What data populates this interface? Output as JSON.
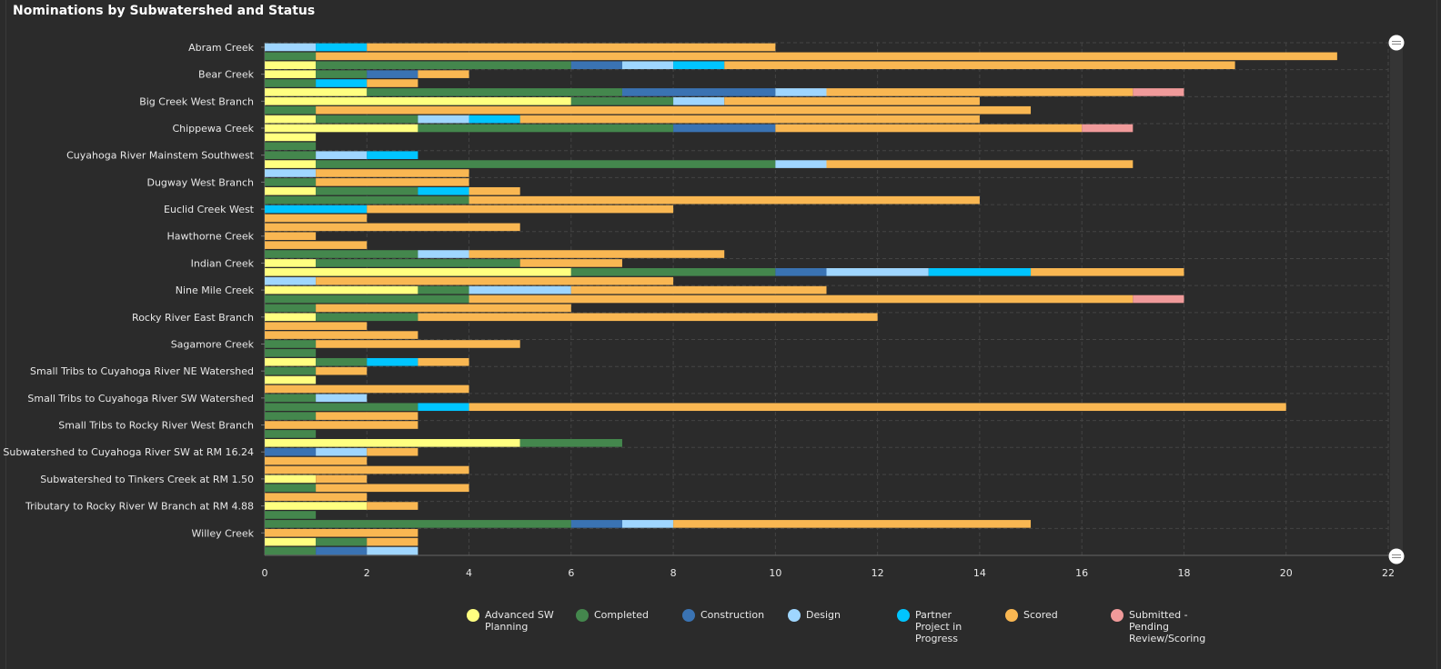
{
  "chart_data": {
    "type": "bar",
    "orientation": "horizontal",
    "stacked": true,
    "title": "Nominations by Subwatershed and Status",
    "xlim": [
      0,
      22
    ],
    "x_ticks": [
      0,
      2,
      4,
      6,
      8,
      10,
      12,
      14,
      16,
      18,
      20,
      22
    ],
    "grid": true,
    "legend_position": "bottom",
    "y_tick_labels": [
      "Abram Creek",
      "Bear Creek",
      "Big Creek West Branch",
      "Chippewa Creek",
      "Cuyahoga River Mainstem Southwest",
      "Dugway West Branch",
      "Euclid Creek West",
      "Hawthorne Creek",
      "Indian Creek",
      "Nine Mile Creek",
      "Rocky River East Branch",
      "Sagamore Creek",
      "Small Tribs to Cuyahoga River NE Watershed",
      "Small Tribs to Cuyahoga River SW Watershed",
      "Small Tribs to Rocky River West Branch",
      "Subwatershed to Cuyahoga River SW at RM 16.24",
      "Subwatershed to Tinkers Creek at RM 1.50",
      "Tributary to Rocky River W Branch at RM 4.88",
      "Willey Creek"
    ],
    "series": [
      {
        "name": "Advanced SW Planning",
        "color": "#ffff80"
      },
      {
        "name": "Completed",
        "color": "#44874d"
      },
      {
        "name": "Construction",
        "color": "#3a73b3"
      },
      {
        "name": "Design",
        "color": "#9fd6ff"
      },
      {
        "name": "Partner Project in Progress",
        "color": "#00c5ff"
      },
      {
        "name": "Scored",
        "color": "#f9b752"
      },
      {
        "name": "Submitted - Pending Review/Scoring",
        "color": "#f09a9a"
      }
    ],
    "rows": [
      [
        0,
        0,
        0,
        1,
        1,
        8,
        0
      ],
      [
        0,
        1,
        0,
        0,
        0,
        20,
        0
      ],
      [
        1,
        5,
        1,
        1,
        1,
        10,
        0
      ],
      [
        1,
        1,
        1,
        0,
        0,
        1,
        0
      ],
      [
        0,
        1,
        0,
        0,
        1,
        1,
        0
      ],
      [
        2,
        5,
        3,
        1,
        0,
        6,
        1
      ],
      [
        6,
        2,
        0,
        1,
        0,
        5,
        0
      ],
      [
        0,
        1,
        0,
        0,
        0,
        14,
        0
      ],
      [
        1,
        2,
        0,
        1,
        1,
        9,
        0
      ],
      [
        3,
        5,
        2,
        0,
        0,
        6,
        1
      ],
      [
        1,
        0,
        0,
        0,
        0,
        0,
        0
      ],
      [
        0,
        1,
        0,
        0,
        0,
        0,
        0
      ],
      [
        0,
        1,
        0,
        1,
        1,
        0,
        0
      ],
      [
        1,
        9,
        0,
        1,
        0,
        6,
        0
      ],
      [
        0,
        0,
        0,
        1,
        0,
        3,
        0
      ],
      [
        0,
        1,
        0,
        0,
        0,
        3,
        0
      ],
      [
        1,
        2,
        0,
        0,
        1,
        1,
        0
      ],
      [
        0,
        4,
        0,
        0,
        0,
        10,
        0
      ],
      [
        0,
        0,
        0,
        0,
        2,
        6,
        0
      ],
      [
        0,
        0,
        0,
        0,
        0,
        2,
        0
      ],
      [
        0,
        0,
        0,
        0,
        0,
        5,
        0
      ],
      [
        0,
        0,
        0,
        0,
        0,
        1,
        0
      ],
      [
        0,
        0,
        0,
        0,
        0,
        2,
        0
      ],
      [
        0,
        3,
        0,
        1,
        0,
        5,
        0
      ],
      [
        1,
        4,
        0,
        0,
        0,
        2,
        0
      ],
      [
        6,
        4,
        1,
        2,
        2,
        3,
        0
      ],
      [
        0,
        0,
        0,
        1,
        0,
        7,
        0
      ],
      [
        3,
        1,
        0,
        2,
        0,
        5,
        0
      ],
      [
        0,
        4,
        0,
        0,
        0,
        13,
        1
      ],
      [
        0,
        1,
        0,
        0,
        0,
        5,
        0
      ],
      [
        1,
        2,
        0,
        0,
        0,
        9,
        0
      ],
      [
        0,
        0,
        0,
        0,
        0,
        2,
        0
      ],
      [
        0,
        0,
        0,
        0,
        0,
        3,
        0
      ],
      [
        0,
        1,
        0,
        0,
        0,
        4,
        0
      ],
      [
        0,
        1,
        0,
        0,
        0,
        0,
        0
      ],
      [
        1,
        1,
        0,
        0,
        1,
        1,
        0
      ],
      [
        0,
        1,
        0,
        0,
        0,
        1,
        0
      ],
      [
        1,
        0,
        0,
        0,
        0,
        0,
        0
      ],
      [
        0,
        0,
        0,
        0,
        0,
        4,
        0
      ],
      [
        0,
        1,
        0,
        1,
        0,
        0,
        0
      ],
      [
        0,
        3,
        0,
        0,
        1,
        16,
        0
      ],
      [
        0,
        1,
        0,
        0,
        0,
        2,
        0
      ],
      [
        0,
        0,
        0,
        0,
        0,
        3,
        0
      ],
      [
        0,
        1,
        0,
        0,
        0,
        0,
        0
      ],
      [
        5,
        2,
        0,
        0,
        0,
        0,
        0
      ],
      [
        0,
        0,
        1,
        1,
        0,
        1,
        0
      ],
      [
        0,
        0,
        0,
        0,
        0,
        2,
        0
      ],
      [
        0,
        0,
        0,
        0,
        0,
        4,
        0
      ],
      [
        1,
        0,
        0,
        0,
        0,
        1,
        0
      ],
      [
        0,
        1,
        0,
        0,
        0,
        3,
        0
      ],
      [
        0,
        0,
        0,
        0,
        0,
        2,
        0
      ],
      [
        2,
        0,
        0,
        0,
        0,
        1,
        0
      ],
      [
        0,
        1,
        0,
        0,
        0,
        0,
        0
      ],
      [
        0,
        6,
        1,
        1,
        0,
        7,
        0
      ],
      [
        0,
        0,
        0,
        0,
        0,
        3,
        0
      ],
      [
        1,
        1,
        0,
        0,
        0,
        1,
        0
      ],
      [
        0,
        1,
        1,
        1,
        0,
        0,
        0
      ]
    ]
  },
  "legend": {
    "items": [
      "Advanced SW Planning",
      "Completed",
      "Construction",
      "Design",
      "Partner Project in Progress",
      "Scored",
      "Submitted - Pending Review/Scoring"
    ]
  }
}
